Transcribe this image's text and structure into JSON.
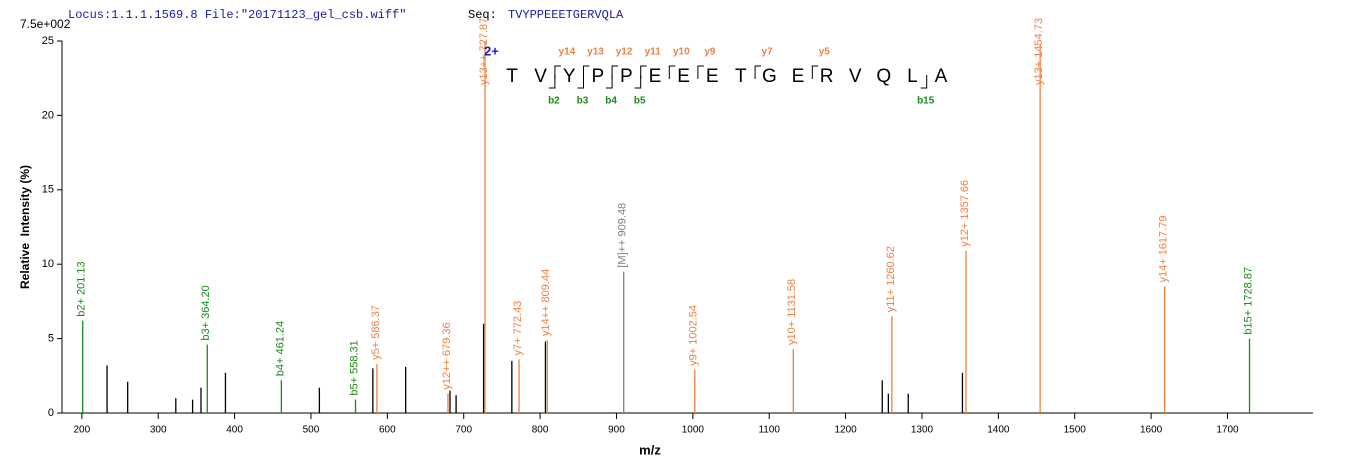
{
  "chart_data": {
    "type": "spectrum",
    "header": {
      "locus": "Locus:1.1.1.1569.8 File:\"20171123_gel_csb.wiff\"",
      "seq_label": "Seq:",
      "seq": "TVYPPEEETGERVQLA"
    },
    "scale_label": "7.5e+002",
    "xlabel": "m/z",
    "ylabel": "Relative  Intensity (%)",
    "xlim": [
      174,
      1812
    ],
    "ylim": [
      0,
      25
    ],
    "xticks": [
      200,
      300,
      400,
      500,
      600,
      700,
      800,
      900,
      1000,
      1100,
      1200,
      1300,
      1400,
      1500,
      1600,
      1700
    ],
    "yticks": [
      0,
      5,
      10,
      15,
      20,
      25
    ],
    "peaks": [
      {
        "mz": 201.13,
        "intensity": 6.2,
        "label": "b2+ 201.13",
        "color": "#1a8a1a"
      },
      {
        "mz": 233,
        "intensity": 3.2,
        "color": "#000000"
      },
      {
        "mz": 260,
        "intensity": 2.1,
        "color": "#000000"
      },
      {
        "mz": 323,
        "intensity": 1.0,
        "color": "#000000"
      },
      {
        "mz": 345,
        "intensity": 0.9,
        "color": "#000000"
      },
      {
        "mz": 356,
        "intensity": 1.7,
        "color": "#000000"
      },
      {
        "mz": 364.2,
        "intensity": 4.6,
        "label": "b3+ 364.20",
        "color": "#1a8a1a"
      },
      {
        "mz": 388,
        "intensity": 2.7,
        "color": "#000000"
      },
      {
        "mz": 461.24,
        "intensity": 2.2,
        "label": "b4+ 461.24",
        "color": "#1a8a1a"
      },
      {
        "mz": 511,
        "intensity": 1.7,
        "color": "#000000"
      },
      {
        "mz": 558.31,
        "intensity": 0.9,
        "label": "b5+ 558.31",
        "color": "#1a8a1a"
      },
      {
        "mz": 581,
        "intensity": 3.0,
        "color": "#000000"
      },
      {
        "mz": 586.37,
        "intensity": 3.3,
        "label": "y5+ 586.37",
        "color": "#f08040"
      },
      {
        "mz": 624,
        "intensity": 3.1,
        "color": "#000000"
      },
      {
        "mz": 679.36,
        "intensity": 1.3,
        "label": "y12++ 679.36",
        "color": "#f08040"
      },
      {
        "mz": 682,
        "intensity": 1.5,
        "color": "#000000"
      },
      {
        "mz": 690,
        "intensity": 1.2,
        "color": "#000000"
      },
      {
        "mz": 726,
        "intensity": 6.0,
        "color": "#000000"
      },
      {
        "mz": 727.87,
        "intensity": 25,
        "label": "y13++ 727.87",
        "color": "#f08040"
      },
      {
        "mz": 763,
        "intensity": 3.5,
        "color": "#000000"
      },
      {
        "mz": 772.43,
        "intensity": 3.6,
        "label": "y7+ 772.43",
        "color": "#f08040"
      },
      {
        "mz": 807,
        "intensity": 4.8,
        "color": "#000000"
      },
      {
        "mz": 809.44,
        "intensity": 4.9,
        "label": "y14++ 809.44",
        "color": "#f08040"
      },
      {
        "mz": 909.48,
        "intensity": 9.5,
        "label": "[M]++ 909.48",
        "color": "#808080"
      },
      {
        "mz": 1002.54,
        "intensity": 2.9,
        "label": "y9+ 1002.54",
        "color": "#f08040"
      },
      {
        "mz": 1131.58,
        "intensity": 4.3,
        "label": "y10+ 1131.58",
        "color": "#f08040"
      },
      {
        "mz": 1248,
        "intensity": 2.2,
        "color": "#000000"
      },
      {
        "mz": 1256,
        "intensity": 1.3,
        "color": "#000000"
      },
      {
        "mz": 1260.62,
        "intensity": 6.5,
        "label": "y11+ 1260.62",
        "color": "#f08040"
      },
      {
        "mz": 1282,
        "intensity": 1.3,
        "color": "#000000"
      },
      {
        "mz": 1353,
        "intensity": 2.7,
        "color": "#000000"
      },
      {
        "mz": 1357.66,
        "intensity": 10.9,
        "label": "y12+ 1357.66",
        "color": "#f08040"
      },
      {
        "mz": 1454.73,
        "intensity": 24.8,
        "label": "y13+ 1454.73",
        "color": "#f08040"
      },
      {
        "mz": 1617.79,
        "intensity": 8.5,
        "label": "y14+ 1617.79",
        "color": "#f08040"
      },
      {
        "mz": 1728.87,
        "intensity": 5.0,
        "label": "b15+ 1728.87",
        "color": "#1a8a1a"
      }
    ],
    "sequence": {
      "charge": "2+",
      "residues": [
        "T",
        "V",
        "Y",
        "P",
        "P",
        "E",
        "E",
        "E",
        "T",
        "G",
        "E",
        "R",
        "V",
        "Q",
        "L",
        "A"
      ],
      "y_ions": [
        "y14",
        "y13",
        "y12",
        "y11",
        "y10",
        "y9",
        "y7",
        "y5"
      ],
      "b_ions": [
        "b2",
        "b3",
        "b4",
        "b5",
        "b15"
      ]
    }
  }
}
